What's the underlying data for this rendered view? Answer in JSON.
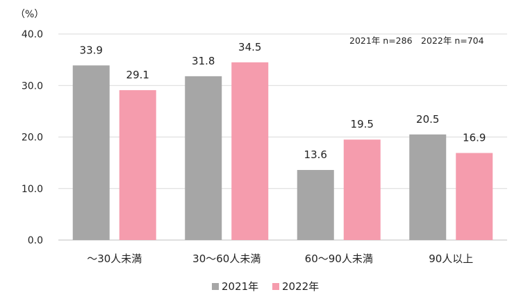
{
  "chart_data": {
    "type": "bar",
    "y_unit": "（%）",
    "annotation": "2021年 n=286　2022年 n=704",
    "categories": [
      "～30人未満",
      "30～60人未満",
      "60～90人未満",
      "90人以上"
    ],
    "series": [
      {
        "name": "2021年",
        "color": "#a6a6a6",
        "values": [
          33.9,
          31.8,
          13.6,
          20.5
        ],
        "labels": [
          "33.9",
          "31.8",
          "13.6",
          "20.5"
        ]
      },
      {
        "name": "2022年",
        "color": "#f59cad",
        "values": [
          29.1,
          34.5,
          19.5,
          16.9
        ],
        "labels": [
          "29.1",
          "34.5",
          "19.5",
          "16.9"
        ]
      }
    ],
    "ylim": [
      0,
      40
    ],
    "yticks": [
      "0.0",
      "10.0",
      "20.0",
      "30.0",
      "40.0"
    ],
    "grid": true,
    "legend_position": "bottom"
  }
}
